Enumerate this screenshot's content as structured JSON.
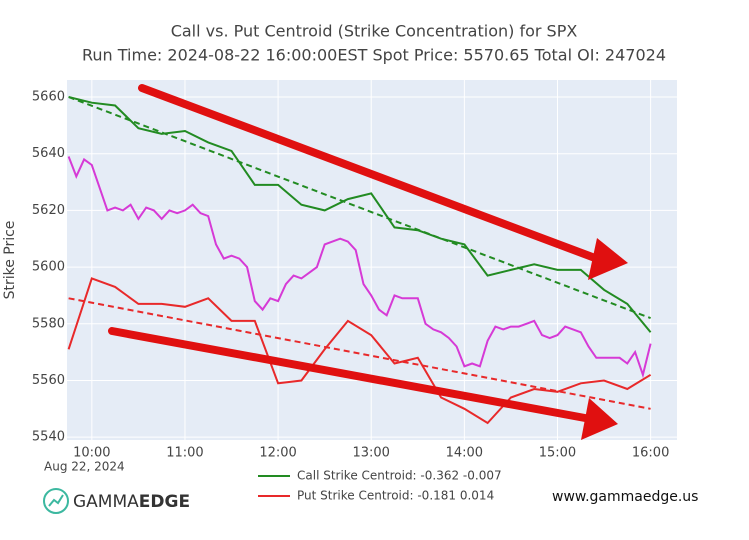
{
  "chart_data": {
    "type": "line",
    "title": "Call vs. Put Centroid (Strike Concentration) for SPX",
    "subtitle": "Run Time: 2024-08-22 16:00:00EST Spot Price: 5570.65 Total OI: 247024",
    "y_label": "Strike Price",
    "date_label": "Aug 22, 2024",
    "xlim": [
      "09:44",
      "16:17"
    ],
    "xticks": [
      "10:00",
      "11:00",
      "12:00",
      "13:00",
      "14:00",
      "15:00",
      "16:00"
    ],
    "ylim": [
      5539,
      5666
    ],
    "yticks": [
      5540,
      5560,
      5580,
      5600,
      5620,
      5640,
      5660
    ],
    "grid": true,
    "series": [
      {
        "name": "Call Strike Centroid: -0.362 -0.007",
        "color": "#228b22",
        "x": [
          "09:45",
          "10:00",
          "10:15",
          "10:30",
          "10:45",
          "11:00",
          "11:15",
          "11:30",
          "11:45",
          "12:00",
          "12:15",
          "12:30",
          "12:45",
          "13:00",
          "13:15",
          "13:30",
          "13:45",
          "14:00",
          "14:15",
          "14:30",
          "14:45",
          "15:00",
          "15:15",
          "15:30",
          "15:45",
          "16:00"
        ],
        "values": [
          5660,
          5658,
          5657,
          5649,
          5647,
          5648,
          5644,
          5641,
          5629,
          5629,
          5622,
          5620,
          5624,
          5626,
          5614,
          5613,
          5610,
          5608,
          5597,
          5599,
          5601,
          5599,
          5599,
          5592,
          5587,
          5577
        ]
      },
      {
        "name": "Put Strike Centroid: -0.181 0.014",
        "color": "#e8292a",
        "x": [
          "09:45",
          "10:00",
          "10:15",
          "10:30",
          "10:45",
          "11:00",
          "11:15",
          "11:30",
          "11:45",
          "12:00",
          "12:15",
          "12:30",
          "12:45",
          "13:00",
          "13:15",
          "13:30",
          "13:45",
          "14:00",
          "14:15",
          "14:30",
          "14:45",
          "15:00",
          "15:15",
          "15:30",
          "15:45",
          "16:00"
        ],
        "values": [
          5571,
          5596,
          5593,
          5587,
          5587,
          5586,
          5589,
          5581,
          5581,
          5559,
          5560,
          5571,
          5581,
          5576,
          5566,
          5568,
          5554,
          5550,
          5545,
          5554,
          5557,
          5556,
          5559,
          5560,
          5557,
          5562
        ]
      },
      {
        "color": "#228b22",
        "dash": true,
        "x": [
          "09:45",
          "16:00"
        ],
        "values": [
          5660,
          5582
        ]
      },
      {
        "color": "#e8292a",
        "dash": true,
        "x": [
          "09:45",
          "16:00"
        ],
        "values": [
          5589,
          5550
        ]
      },
      {
        "color": "#d63ad6",
        "x": [
          "09:45",
          "09:50",
          "09:55",
          "10:00",
          "10:05",
          "10:10",
          "10:15",
          "10:20",
          "10:25",
          "10:30",
          "10:35",
          "10:40",
          "10:45",
          "10:50",
          "10:55",
          "11:00",
          "11:05",
          "11:10",
          "11:15",
          "11:20",
          "11:25",
          "11:30",
          "11:35",
          "11:40",
          "11:45",
          "11:50",
          "11:55",
          "12:00",
          "12:05",
          "12:10",
          "12:15",
          "12:20",
          "12:25",
          "12:30",
          "12:35",
          "12:40",
          "12:45",
          "12:50",
          "12:55",
          "13:00",
          "13:05",
          "13:10",
          "13:15",
          "13:20",
          "13:25",
          "13:30",
          "13:35",
          "13:40",
          "13:45",
          "13:50",
          "13:55",
          "14:00",
          "14:05",
          "14:10",
          "14:15",
          "14:20",
          "14:25",
          "14:30",
          "14:35",
          "14:40",
          "14:45",
          "14:50",
          "14:55",
          "15:00",
          "15:05",
          "15:10",
          "15:15",
          "15:20",
          "15:25",
          "15:30",
          "15:35",
          "15:40",
          "15:45",
          "15:50",
          "15:55",
          "16:00"
        ],
        "values": [
          5639,
          5632,
          5638,
          5636,
          5628,
          5620,
          5621,
          5620,
          5622,
          5617,
          5621,
          5620,
          5617,
          5620,
          5619,
          5620,
          5622,
          5619,
          5618,
          5608,
          5603,
          5604,
          5603,
          5600,
          5588,
          5585,
          5589,
          5588,
          5594,
          5597,
          5596,
          5598,
          5600,
          5608,
          5609,
          5610,
          5609,
          5606,
          5594,
          5590,
          5585,
          5583,
          5590,
          5589,
          5589,
          5589,
          5580,
          5578,
          5577,
          5575,
          5572,
          5565,
          5566,
          5565,
          5574,
          5579,
          5578,
          5579,
          5579,
          5580,
          5581,
          5576,
          5575,
          5576,
          5579,
          5578,
          5577,
          5572,
          5568,
          5568,
          5568,
          5568,
          5566,
          5570,
          5562,
          5573
        ]
      }
    ]
  },
  "footer": {
    "logo_light": "GAMMA",
    "logo_bold": "EDGE",
    "website": "www.gammaedge.us"
  }
}
